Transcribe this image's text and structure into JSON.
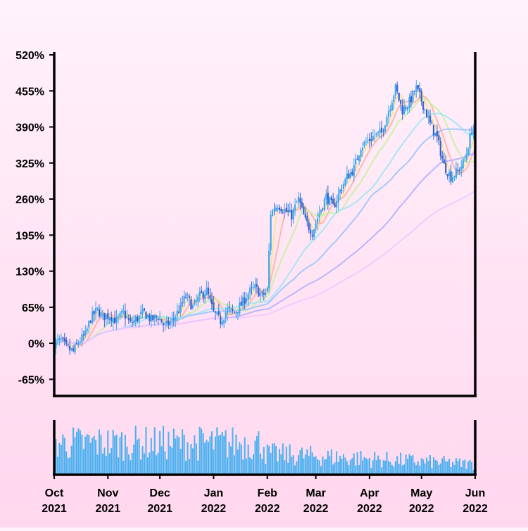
{
  "chart_data": {
    "type": "candlestick",
    "title": "",
    "xlabel": "",
    "ylabel": "",
    "y_unit": "percent",
    "ylim": [
      -95,
      520
    ],
    "xlim": [
      "2021-10-01",
      "2022-06-01"
    ],
    "grid": false,
    "y_ticks": [
      {
        "value": -65,
        "label": "-65%"
      },
      {
        "value": 0,
        "label": "0%"
      },
      {
        "value": 65,
        "label": "65%"
      },
      {
        "value": 130,
        "label": "130%"
      },
      {
        "value": 195,
        "label": "195%"
      },
      {
        "value": 260,
        "label": "260%"
      },
      {
        "value": 325,
        "label": "325%"
      },
      {
        "value": 390,
        "label": "390%"
      },
      {
        "value": 455,
        "label": "455%"
      },
      {
        "value": 520,
        "label": "520%"
      }
    ],
    "x_ticks": [
      {
        "date": "2021-10-01",
        "month": "Oct",
        "year": "2021"
      },
      {
        "date": "2021-11-01",
        "month": "Nov",
        "year": "2021"
      },
      {
        "date": "2021-12-01",
        "month": "Dec",
        "year": "2021"
      },
      {
        "date": "2022-01-01",
        "month": "Jan",
        "year": "2022"
      },
      {
        "date": "2022-02-01",
        "month": "Feb",
        "year": "2022"
      },
      {
        "date": "2022-03-01",
        "month": "Mar",
        "year": "2022"
      },
      {
        "date": "2022-04-01",
        "month": "Apr",
        "year": "2022"
      },
      {
        "date": "2022-05-01",
        "month": "May",
        "year": "2022"
      },
      {
        "date": "2022-06-01",
        "month": "Jun",
        "year": "2022"
      }
    ],
    "price_path": [
      [
        "2021-10-01",
        0
      ],
      [
        "2021-10-05",
        5
      ],
      [
        "2021-10-08",
        -8
      ],
      [
        "2021-10-12",
        -15
      ],
      [
        "2021-10-15",
        2
      ],
      [
        "2021-10-19",
        15
      ],
      [
        "2021-10-22",
        45
      ],
      [
        "2021-10-26",
        60
      ],
      [
        "2021-10-29",
        48
      ],
      [
        "2021-11-02",
        50
      ],
      [
        "2021-11-06",
        40
      ],
      [
        "2021-11-10",
        55
      ],
      [
        "2021-11-14",
        35
      ],
      [
        "2021-11-18",
        45
      ],
      [
        "2021-11-22",
        55
      ],
      [
        "2021-11-26",
        42
      ],
      [
        "2021-11-30",
        48
      ],
      [
        "2021-12-04",
        30
      ],
      [
        "2021-12-08",
        40
      ],
      [
        "2021-12-12",
        60
      ],
      [
        "2021-12-16",
        85
      ],
      [
        "2021-12-20",
        65
      ],
      [
        "2021-12-24",
        85
      ],
      [
        "2021-12-28",
        95
      ],
      [
        "2022-01-01",
        55
      ],
      [
        "2022-01-05",
        40
      ],
      [
        "2022-01-09",
        60
      ],
      [
        "2022-01-13",
        55
      ],
      [
        "2022-01-17",
        70
      ],
      [
        "2022-01-21",
        90
      ],
      [
        "2022-01-25",
        100
      ],
      [
        "2022-01-29",
        85
      ],
      [
        "2022-02-01",
        95
      ],
      [
        "2022-02-03",
        235
      ],
      [
        "2022-02-07",
        250
      ],
      [
        "2022-02-11",
        240
      ],
      [
        "2022-02-15",
        230
      ],
      [
        "2022-02-19",
        260
      ],
      [
        "2022-02-23",
        220
      ],
      [
        "2022-02-27",
        200
      ],
      [
        "2022-03-03",
        235
      ],
      [
        "2022-03-07",
        265
      ],
      [
        "2022-03-11",
        245
      ],
      [
        "2022-03-15",
        275
      ],
      [
        "2022-03-19",
        300
      ],
      [
        "2022-03-23",
        315
      ],
      [
        "2022-03-27",
        355
      ],
      [
        "2022-03-31",
        365
      ],
      [
        "2022-04-04",
        375
      ],
      [
        "2022-04-08",
        380
      ],
      [
        "2022-04-12",
        420
      ],
      [
        "2022-04-16",
        460
      ],
      [
        "2022-04-20",
        420
      ],
      [
        "2022-04-24",
        435
      ],
      [
        "2022-04-28",
        460
      ],
      [
        "2022-05-02",
        430
      ],
      [
        "2022-05-06",
        395
      ],
      [
        "2022-05-10",
        370
      ],
      [
        "2022-05-14",
        320
      ],
      [
        "2022-05-18",
        300
      ],
      [
        "2022-05-22",
        310
      ],
      [
        "2022-05-26",
        330
      ],
      [
        "2022-05-30",
        385
      ]
    ],
    "moving_average_windows": [
      5,
      10,
      20,
      40,
      60,
      100,
      150
    ],
    "moving_average_colors": [
      "#ffe08a",
      "#ffb0a0",
      "#c8f0a0",
      "#9fe6f2",
      "#9cc4ff",
      "#b3b0ff",
      "#f0c8ff"
    ],
    "candle_colors": {
      "up": "#38a8f0",
      "down": "#3060d0"
    },
    "volume_color": "#48b0f0",
    "volume_panel": true
  }
}
